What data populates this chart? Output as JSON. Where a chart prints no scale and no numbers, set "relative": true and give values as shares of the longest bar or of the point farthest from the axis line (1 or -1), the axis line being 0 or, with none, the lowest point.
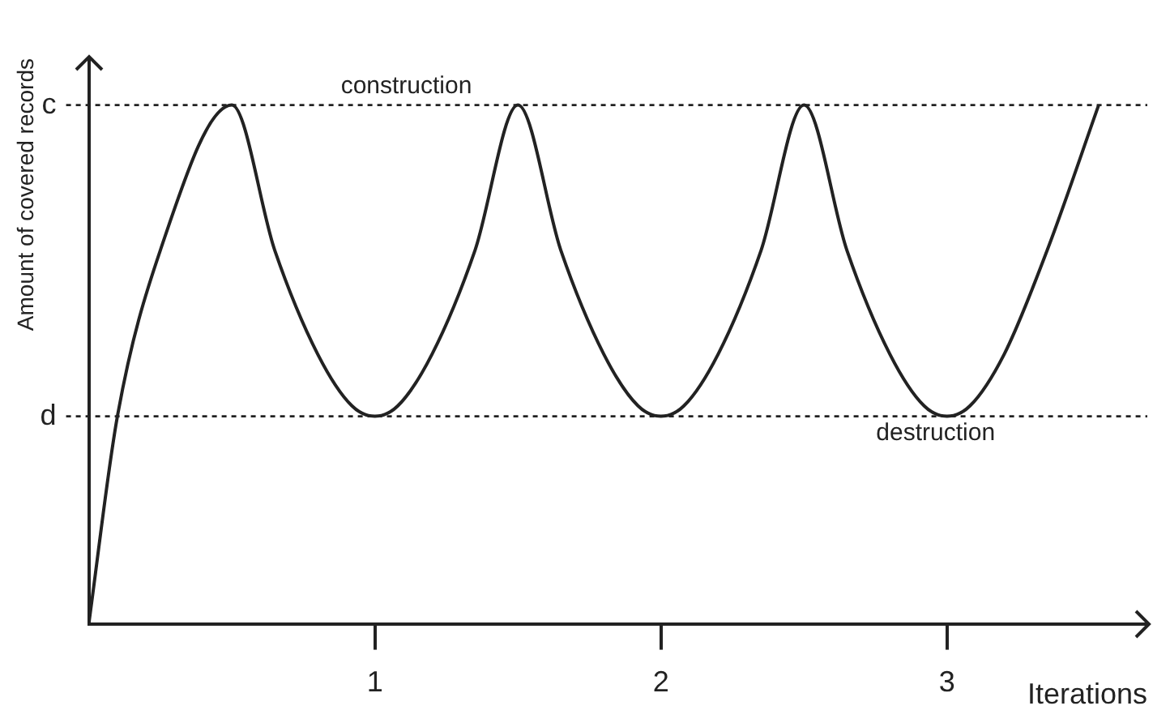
{
  "chart_data": {
    "type": "line",
    "relative": true,
    "xlabel": "Iterations",
    "ylabel": "Amount of covered records",
    "x": [
      0,
      0.1,
      0.25,
      0.5,
      0.65,
      0.8,
      0.92,
      1,
      1.08,
      1.2,
      1.35,
      1.5,
      1.65,
      1.8,
      1.92,
      2,
      2.08,
      2.2,
      2.35,
      2.5,
      2.65,
      2.8,
      2.92,
      3,
      3.08,
      3.2,
      3.35,
      3.53
    ],
    "series": [
      {
        "color": "#222222",
        "values": [
          0,
          0.4,
          0.72,
          1,
          0.72,
          0.52,
          0.42,
          0.4,
          0.42,
          0.52,
          0.72,
          1,
          0.72,
          0.52,
          0.42,
          0.4,
          0.42,
          0.52,
          0.72,
          1,
          0.72,
          0.52,
          0.42,
          0.4,
          0.42,
          0.52,
          0.72,
          1
        ]
      }
    ],
    "xlim": [
      0,
      3.7
    ],
    "xticks": [
      1,
      2,
      3
    ],
    "ref_lines": [
      {
        "axis": "y",
        "value": 1,
        "label": "construction",
        "line_style": "dotted"
      },
      {
        "axis": "y",
        "value": 0.4,
        "label": "destruction",
        "line_style": "dotted"
      }
    ],
    "annotations": [
      "c",
      "d"
    ],
    "grid": false,
    "legend": false,
    "marker": "none",
    "line_style": "solid"
  }
}
